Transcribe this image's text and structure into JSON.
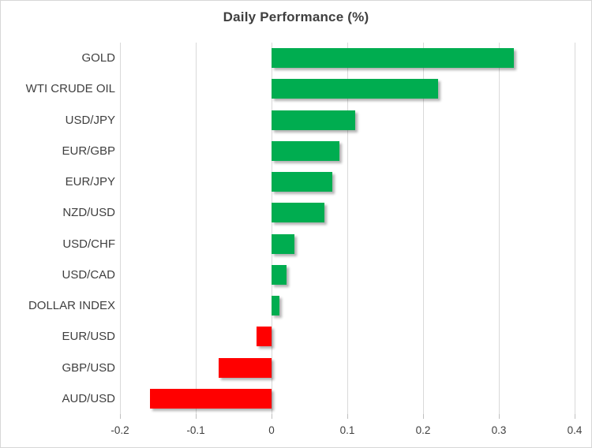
{
  "chart_data": {
    "type": "bar",
    "orientation": "horizontal",
    "title": "Daily Performance (%)",
    "categories": [
      "GOLD",
      "WTI CRUDE OIL",
      "USD/JPY",
      "EUR/GBP",
      "EUR/JPY",
      "NZD/USD",
      "USD/CHF",
      "USD/CAD",
      "DOLLAR INDEX",
      "EUR/USD",
      "GBP/USD",
      "AUD/USD"
    ],
    "values": [
      0.32,
      0.22,
      0.11,
      0.09,
      0.08,
      0.07,
      0.03,
      0.02,
      0.01,
      -0.02,
      -0.07,
      -0.16
    ],
    "xlim": [
      -0.2,
      0.4
    ],
    "xtick_values": [
      -0.2,
      -0.1,
      0,
      0.1,
      0.2,
      0.3,
      0.4
    ],
    "xtick_labels": [
      "-0.2",
      "-0.1",
      "0",
      "0.1",
      "0.2",
      "0.3",
      "0.4"
    ],
    "grid": true,
    "legend": false,
    "colors": {
      "positive_bar": "#00AD50",
      "negative_bar": "#FF0000",
      "gridline": "#D9D9D9",
      "tick_mark": "#BFBFBF",
      "text": "#3F3F3F",
      "frame_border": "#D7D7D7"
    }
  }
}
